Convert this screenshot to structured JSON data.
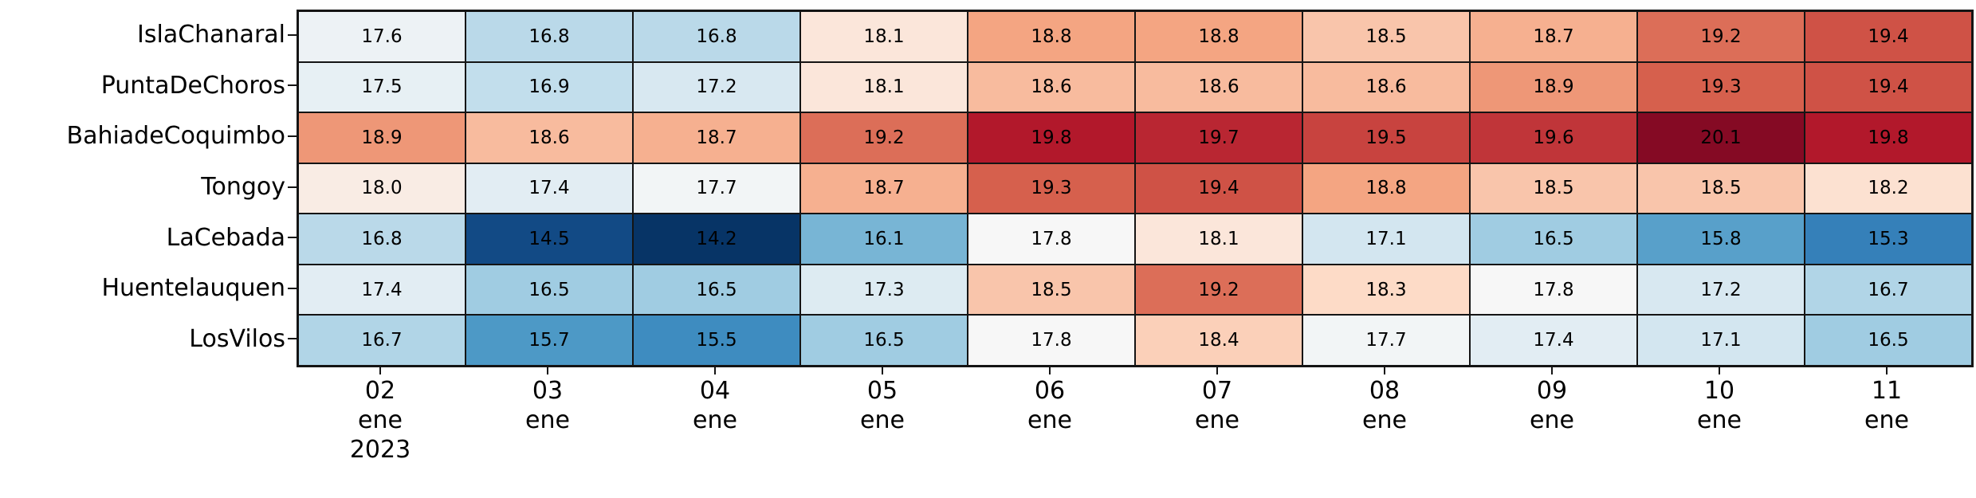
{
  "figure": {
    "background": "#ffffff",
    "gridline_color": "#141414",
    "text_color": "#000000"
  },
  "chart_data": {
    "type": "heatmap",
    "title": "",
    "xlabel": "",
    "ylabel": "",
    "legend": "none",
    "annotations": "cell values shown with one decimal",
    "y_tick_labels": [
      "IslaChanaral",
      "PuntaDeChoros",
      "BahiadeCoquimbo",
      "Tongoy",
      "LaCebada",
      "Huentelauquen",
      "LosVilos"
    ],
    "x_tick_labels": [
      [
        "02",
        "ene",
        "2023"
      ],
      [
        "03",
        "ene"
      ],
      [
        "04",
        "ene"
      ],
      [
        "05",
        "ene"
      ],
      [
        "06",
        "ene"
      ],
      [
        "07",
        "ene"
      ],
      [
        "08",
        "ene"
      ],
      [
        "09",
        "ene"
      ],
      [
        "10",
        "ene"
      ],
      [
        "11",
        "ene"
      ]
    ],
    "values": [
      [
        17.6,
        16.8,
        16.8,
        18.1,
        18.8,
        18.8,
        18.5,
        18.7,
        19.2,
        19.4
      ],
      [
        17.5,
        16.9,
        17.2,
        18.1,
        18.6,
        18.6,
        18.6,
        18.9,
        19.3,
        19.4
      ],
      [
        18.9,
        18.6,
        18.7,
        19.2,
        19.8,
        19.7,
        19.5,
        19.6,
        20.1,
        19.8
      ],
      [
        18.0,
        17.4,
        17.7,
        18.7,
        19.3,
        19.4,
        18.8,
        18.5,
        18.5,
        18.2
      ],
      [
        16.8,
        14.5,
        14.2,
        16.1,
        17.8,
        18.1,
        17.1,
        16.5,
        15.8,
        15.3
      ],
      [
        17.4,
        16.5,
        16.5,
        17.3,
        18.5,
        19.2,
        18.3,
        17.8,
        17.2,
        16.7
      ],
      [
        16.7,
        15.7,
        15.5,
        16.5,
        17.8,
        18.4,
        17.7,
        17.4,
        17.1,
        16.5
      ]
    ],
    "value_min": 14.2,
    "value_max": 20.1,
    "colormap": {
      "name": "RdBu_r",
      "stops": [
        [
          0.0,
          "#053061"
        ],
        [
          0.1,
          "#2166ac"
        ],
        [
          0.2,
          "#4393c3"
        ],
        [
          0.3,
          "#92c5de"
        ],
        [
          0.4,
          "#d1e5f0"
        ],
        [
          0.5,
          "#f7f7f7"
        ],
        [
          0.6,
          "#fddbc7"
        ],
        [
          0.7,
          "#f4a582"
        ],
        [
          0.8,
          "#d6604d"
        ],
        [
          0.9,
          "#b2182b"
        ],
        [
          1.0,
          "#67001f"
        ]
      ]
    },
    "norm": {
      "vmin": 14.15,
      "vcenter": 17.8,
      "vmax": 20.3
    }
  }
}
